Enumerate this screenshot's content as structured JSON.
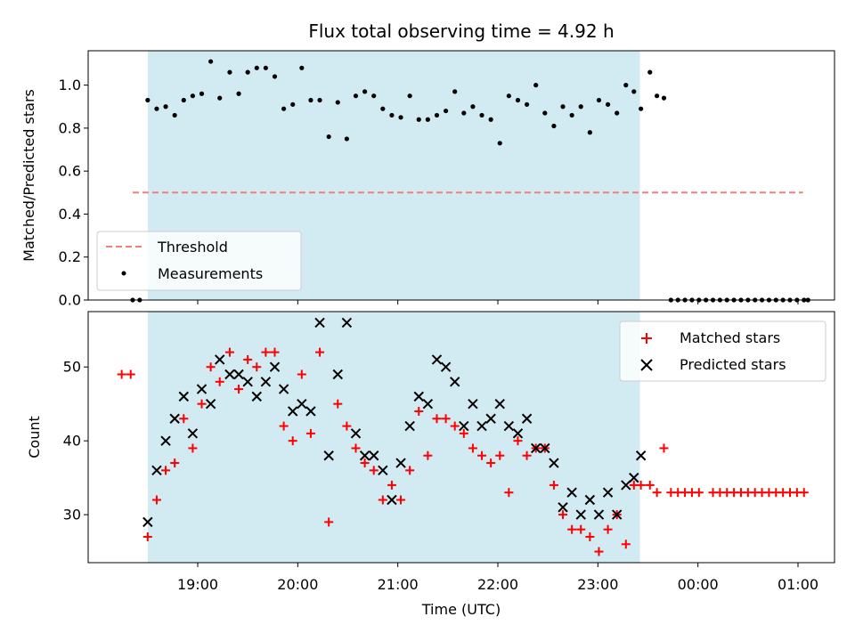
{
  "chart_data": {
    "type": "scatter",
    "title": "Flux total observing time = 4.92 h",
    "xlabel": "Time (UTC)",
    "x_unit": "hours since 18:00 UTC",
    "x_range": [
      -0.095,
      7.365
    ],
    "x_ticks": [
      {
        "value": 1,
        "label": "19:00"
      },
      {
        "value": 2,
        "label": "20:00"
      },
      {
        "value": 3,
        "label": "21:00"
      },
      {
        "value": 4,
        "label": "22:00"
      },
      {
        "value": 5,
        "label": "23:00"
      },
      {
        "value": 6,
        "label": "00:00"
      },
      {
        "value": 7,
        "label": "01:00"
      }
    ],
    "observing_window": [
      0.5,
      5.42
    ],
    "top_panel": {
      "ylabel": "Matched/Predicted stars",
      "ylim": [
        0,
        1.16
      ],
      "y_ticks": [
        0.0,
        0.2,
        0.4,
        0.6,
        0.8,
        1.0
      ],
      "y_tick_labels": [
        "0.0",
        "0.2",
        "0.4",
        "0.6",
        "0.8",
        "1.0"
      ],
      "threshold": {
        "value": 0.5,
        "x_range": [
          0.35,
          7.05
        ],
        "label": "Threshold",
        "color": "#f08080"
      },
      "measurements_label": "Measurements",
      "measurements": {
        "x": [
          0.35,
          0.42,
          0.5,
          0.59,
          0.68,
          0.77,
          0.86,
          0.95,
          1.04,
          1.13,
          1.22,
          1.32,
          1.41,
          1.5,
          1.59,
          1.68,
          1.77,
          1.86,
          1.95,
          2.04,
          2.13,
          2.22,
          2.31,
          2.4,
          2.49,
          2.58,
          2.67,
          2.76,
          2.85,
          2.94,
          3.03,
          3.12,
          3.21,
          3.3,
          3.39,
          3.48,
          3.57,
          3.66,
          3.75,
          3.84,
          3.93,
          4.02,
          4.11,
          4.2,
          4.29,
          4.38,
          4.47,
          4.56,
          4.65,
          4.74,
          4.83,
          4.92,
          5.01,
          5.1,
          5.19,
          5.28,
          5.36,
          5.43,
          5.52,
          5.59,
          5.66,
          5.73,
          5.8,
          5.87,
          5.94,
          6.01,
          6.08,
          6.15,
          6.22,
          6.29,
          6.36,
          6.43,
          6.5,
          6.57,
          6.64,
          6.71,
          6.78,
          6.85,
          6.92,
          6.99,
          7.06,
          7.1
        ],
        "y": [
          0,
          0,
          0.93,
          0.89,
          0.9,
          0.86,
          0.93,
          0.95,
          0.96,
          1.11,
          0.94,
          1.06,
          0.96,
          1.06,
          1.08,
          1.08,
          1.04,
          0.89,
          0.91,
          1.08,
          0.93,
          0.93,
          0.76,
          0.92,
          0.75,
          0.95,
          0.97,
          0.95,
          0.89,
          0.86,
          0.85,
          0.95,
          0.84,
          0.84,
          0.86,
          0.88,
          0.97,
          0.87,
          0.9,
          0.86,
          0.84,
          0.73,
          0.95,
          0.93,
          0.91,
          1.0,
          0.87,
          0.81,
          0.9,
          0.86,
          0.9,
          0.78,
          0.93,
          0.91,
          0.87,
          1.0,
          0.97,
          0.89,
          1.06,
          0.95,
          0.94,
          0,
          0,
          0,
          0,
          0,
          0,
          0,
          0,
          0,
          0,
          0,
          0,
          0,
          0,
          0,
          0,
          0,
          0,
          0,
          0,
          0
        ]
      }
    },
    "bottom_panel": {
      "ylabel": "Count",
      "ylim": [
        23.5,
        57.5
      ],
      "y_ticks": [
        30,
        40,
        50
      ],
      "y_tick_labels": [
        "30",
        "40",
        "50"
      ],
      "series": [
        {
          "name": "Matched stars",
          "marker": "+",
          "color": "#ff0000",
          "x": [
            0.24,
            0.33,
            0.5,
            0.59,
            0.68,
            0.77,
            0.86,
            0.95,
            1.04,
            1.13,
            1.22,
            1.32,
            1.41,
            1.5,
            1.59,
            1.68,
            1.77,
            1.86,
            1.95,
            2.04,
            2.13,
            2.22,
            2.31,
            2.4,
            2.49,
            2.58,
            2.67,
            2.76,
            2.85,
            2.94,
            3.03,
            3.12,
            3.21,
            3.3,
            3.39,
            3.48,
            3.57,
            3.66,
            3.75,
            3.84,
            3.93,
            4.02,
            4.11,
            4.2,
            4.29,
            4.38,
            4.47,
            4.56,
            4.65,
            4.74,
            4.83,
            4.92,
            5.01,
            5.1,
            5.19,
            5.28,
            5.36,
            5.43,
            5.52,
            5.59,
            5.66,
            5.73,
            5.8,
            5.87,
            5.94,
            6.01,
            6.15,
            6.22,
            6.29,
            6.36,
            6.43,
            6.5,
            6.57,
            6.64,
            6.71,
            6.78,
            6.85,
            6.92,
            6.99,
            7.06
          ],
          "y": [
            49,
            49,
            27,
            32,
            36,
            37,
            43,
            39,
            45,
            50,
            48,
            52,
            47,
            51,
            50,
            52,
            52,
            42,
            40,
            49,
            41,
            52,
            29,
            45,
            42,
            39,
            37,
            36,
            32,
            34,
            32,
            36,
            44,
            38,
            43,
            43,
            42,
            41,
            39,
            38,
            37,
            38,
            33,
            40,
            38,
            39,
            39,
            34,
            30,
            28,
            28,
            27,
            25,
            28,
            30,
            26,
            34,
            34,
            34,
            33,
            39,
            33,
            33,
            33,
            33,
            33,
            33,
            33,
            33,
            33,
            33,
            33,
            33,
            33,
            33,
            33,
            33,
            33,
            33,
            33
          ]
        },
        {
          "name": "Predicted stars",
          "marker": "x",
          "color": "#000000",
          "x": [
            0.5,
            0.59,
            0.68,
            0.77,
            0.86,
            0.95,
            1.04,
            1.13,
            1.22,
            1.32,
            1.41,
            1.5,
            1.59,
            1.68,
            1.77,
            1.86,
            1.95,
            2.04,
            2.13,
            2.22,
            2.31,
            2.4,
            2.49,
            2.58,
            2.67,
            2.76,
            2.85,
            2.94,
            3.03,
            3.12,
            3.21,
            3.3,
            3.39,
            3.48,
            3.57,
            3.66,
            3.75,
            3.84,
            3.93,
            4.02,
            4.11,
            4.2,
            4.29,
            4.38,
            4.47,
            4.56,
            4.65,
            4.74,
            4.83,
            4.92,
            5.01,
            5.1,
            5.19,
            5.28,
            5.36,
            5.43
          ],
          "y": [
            29,
            36,
            40,
            43,
            46,
            41,
            47,
            45,
            51,
            49,
            49,
            48,
            46,
            48,
            50,
            47,
            44,
            45,
            44,
            56,
            38,
            49,
            56,
            41,
            38,
            38,
            36,
            32,
            37,
            42,
            46,
            45,
            51,
            50,
            48,
            42,
            45,
            42,
            43,
            45,
            42,
            41,
            43,
            39,
            39,
            37,
            31,
            33,
            30,
            32,
            30,
            33,
            30,
            34,
            35,
            38
          ]
        }
      ]
    },
    "legend_top": [
      {
        "label": "Threshold",
        "kind": "dashed-line",
        "color": "#f08080"
      },
      {
        "label": "Measurements",
        "kind": "dot",
        "color": "#000000"
      }
    ],
    "legend_bottom": [
      {
        "label": "Matched stars",
        "kind": "plus",
        "color": "#ff0000"
      },
      {
        "label": "Predicted stars",
        "kind": "cross",
        "color": "#000000"
      }
    ],
    "shade_color": "#add8e6"
  }
}
